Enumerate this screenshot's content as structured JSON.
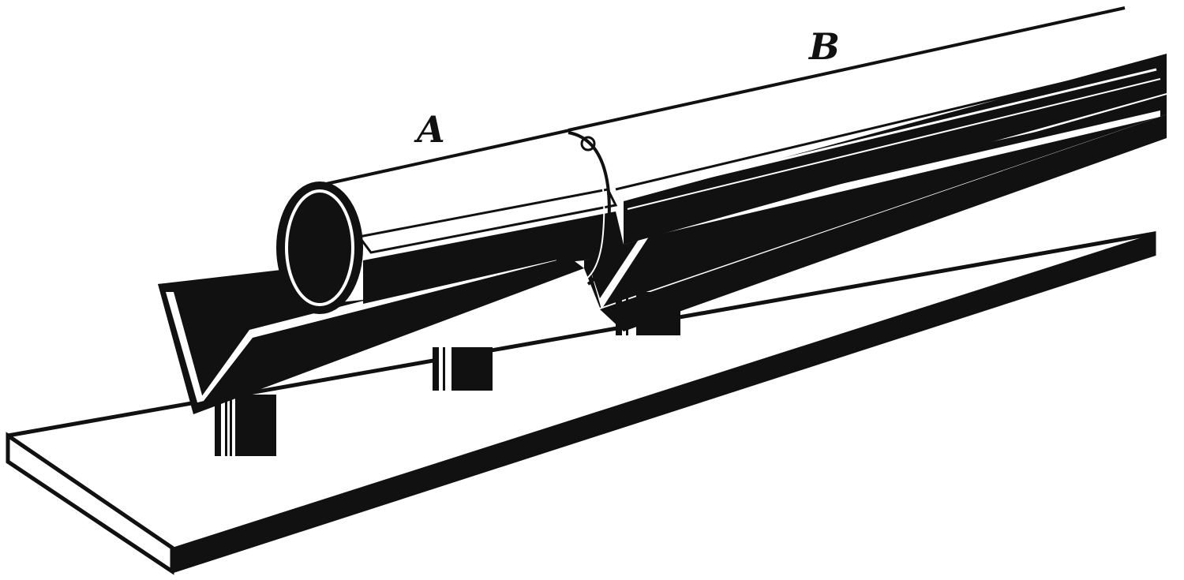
{
  "labels": {
    "a": "A",
    "b": "B"
  },
  "colors": {
    "ink": "#111111",
    "paper": "#ffffff"
  }
}
